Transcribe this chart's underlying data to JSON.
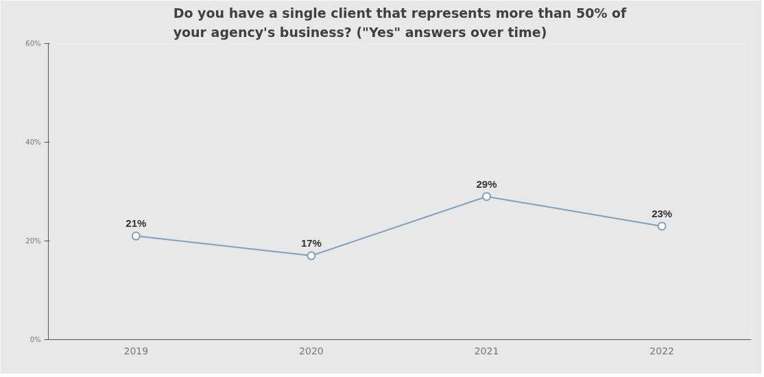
{
  "chart_data": {
    "type": "line",
    "title": "Do you have a single client that represents more than 50% of your agency's business? (\"Yes\" answers over time)",
    "categories": [
      "2019",
      "2020",
      "2021",
      "2022"
    ],
    "series": [
      {
        "color": "#7f9fc0",
        "values": [
          21,
          17,
          29,
          23
        ],
        "value_labels": [
          "21%",
          "17%",
          "29%",
          "23%"
        ]
      }
    ],
    "ylim": [
      0,
      60
    ],
    "yticks": [
      {
        "value": 0,
        "label": "0%"
      },
      {
        "value": 20,
        "label": "20%"
      },
      {
        "value": 40,
        "label": "40%"
      },
      {
        "value": 60,
        "label": "60%"
      }
    ],
    "marker": "circle"
  }
}
